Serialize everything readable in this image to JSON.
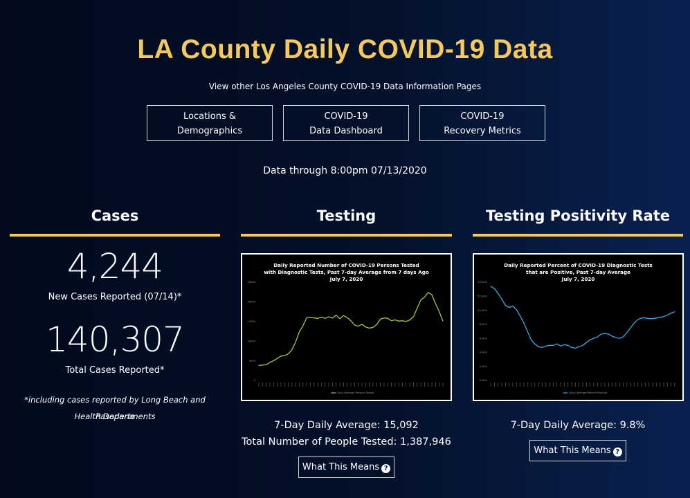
{
  "page": {
    "title": "LA County Daily COVID-19 Data",
    "subtitle": "View other Los Angeles County COVID-19 Data Information Pages",
    "data_through": "Data through 8:00pm 07/13/2020"
  },
  "nav": [
    {
      "line1": "Locations &",
      "line2": "Demographics"
    },
    {
      "line1": "COVID-19",
      "line2": "Data Dashboard"
    },
    {
      "line1": "COVID-19",
      "line2": "Recovery Metrics"
    }
  ],
  "cases": {
    "heading": "Cases",
    "new_cases": "4,244",
    "new_cases_label": "New Cases Reported (07/14)*",
    "total_cases": "140,307",
    "total_cases_label": "Total Cases Reported*",
    "footnote_line1": "*including cases reported by Long Beach and Pasadena",
    "footnote_line2": "Health Departments"
  },
  "testing": {
    "heading": "Testing",
    "daily_average": "7-Day Daily Average: 15,092",
    "total_tested": "Total Number of People Tested: 1,387,946",
    "button_label": "What This Means",
    "help_icon": "question-circle-icon"
  },
  "positivity": {
    "heading": "Testing Positivity Rate",
    "daily_average": "7-Day Daily Average: 9.8%",
    "button_label": "What This Means",
    "help_icon": "question-circle-icon"
  },
  "colors": {
    "accent": "#f6c95c",
    "testing_line": "#9ccc3c",
    "positivity_line": "#3aa8e8"
  },
  "chart_data": [
    {
      "type": "line",
      "title_lines": [
        "Daily Reported Number of COVID-19 Persons Tested",
        "with Diagnostic Tests, Past 7-day Average from 7 days Ago",
        "July 7, 2020"
      ],
      "y_ticks": [
        "0",
        "5000",
        "10000",
        "15000",
        "20000",
        "25000"
      ],
      "ylim": [
        0,
        25000
      ],
      "legend": "Daily Average Persons Tested",
      "legend_position": "bottom",
      "series": [
        {
          "name": "Daily Average Persons Tested",
          "values": [
            3800,
            3900,
            4000,
            4600,
            5000,
            5600,
            6200,
            6300,
            6800,
            7800,
            9800,
            12400,
            13900,
            16000,
            16100,
            15900,
            15800,
            16100,
            15800,
            16200,
            15900,
            16600,
            15700,
            16500,
            16000,
            15200,
            14100,
            13800,
            14300,
            13600,
            13300,
            13500,
            14200,
            15600,
            15900,
            15800,
            15200,
            15400,
            15100,
            15200,
            15000,
            15400,
            16200,
            18400,
            20500,
            21200,
            22400,
            21800,
            19500,
            17500,
            15100
          ]
        }
      ]
    },
    {
      "type": "line",
      "title_lines": [
        "Daily Reported Percent of COVID-19 Diagnostic Tests",
        "that are Positive, Past 7-day Average",
        "July 7, 2020"
      ],
      "y_ticks": [
        "0.00%",
        "2.00%",
        "4.00%",
        "6.00%",
        "8.00%",
        "10.00%",
        "12.00%",
        "14.00%"
      ],
      "ylim": [
        0,
        14
      ],
      "legend": "Daily Average Percent Positive",
      "legend_position": "bottom",
      "series": [
        {
          "name": "Daily Average Percent Positive",
          "values": [
            13.4,
            13.1,
            12.4,
            11.6,
            10.7,
            10.4,
            10.6,
            10.1,
            9.2,
            8.2,
            7.0,
            5.8,
            5.2,
            4.8,
            4.7,
            4.9,
            5.0,
            5.0,
            5.2,
            4.9,
            5.1,
            5.0,
            4.7,
            4.6,
            4.8,
            5.0,
            5.4,
            5.8,
            6.0,
            6.2,
            6.6,
            6.7,
            6.6,
            6.3,
            6.1,
            6.0,
            6.2,
            6.8,
            7.5,
            8.2,
            8.7,
            8.9,
            8.9,
            8.8,
            8.8,
            8.9,
            9.0,
            9.1,
            9.3,
            9.6,
            9.8
          ]
        }
      ]
    }
  ]
}
